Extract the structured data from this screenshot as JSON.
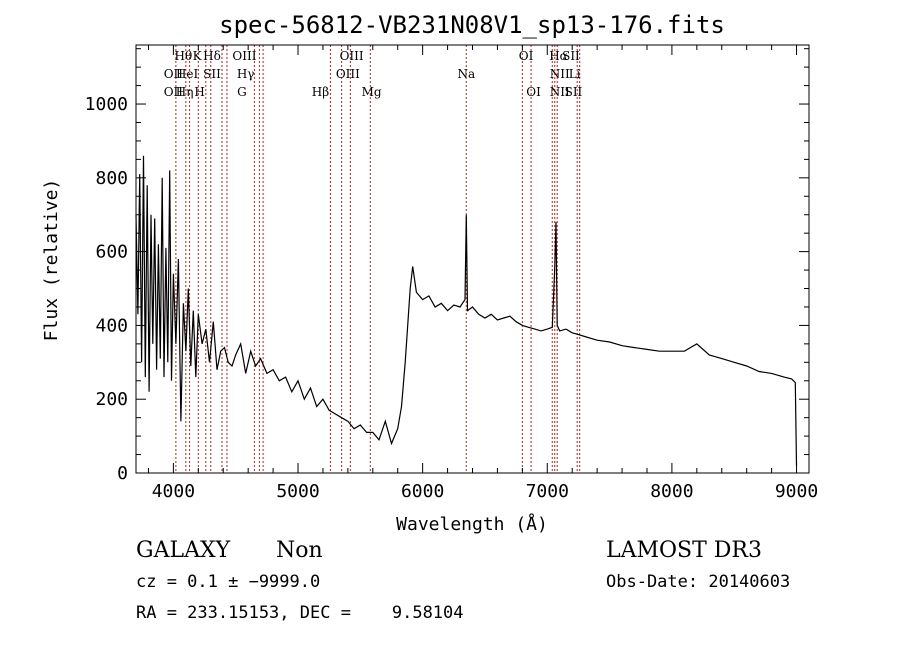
{
  "chart_data": {
    "type": "line",
    "title": "spec-56812-VB231N08V1_sp13-176.fits",
    "xlabel": "Wavelength (Å)",
    "ylabel": "Flux (relative)",
    "xlim": [
      3700,
      9100
    ],
    "ylim": [
      0,
      1160
    ],
    "xticks": [
      4000,
      5000,
      6000,
      7000,
      8000,
      9000
    ],
    "yticks": [
      0,
      200,
      400,
      600,
      800,
      1000
    ],
    "grid": false,
    "series": [
      {
        "name": "flux",
        "x": [
          3700,
          3715,
          3730,
          3745,
          3760,
          3775,
          3790,
          3805,
          3820,
          3835,
          3850,
          3865,
          3880,
          3895,
          3910,
          3925,
          3940,
          3955,
          3970,
          3985,
          4000,
          4020,
          4040,
          4060,
          4080,
          4100,
          4120,
          4140,
          4160,
          4180,
          4200,
          4230,
          4260,
          4290,
          4320,
          4350,
          4380,
          4410,
          4440,
          4470,
          4500,
          4540,
          4580,
          4620,
          4660,
          4700,
          4750,
          4800,
          4850,
          4900,
          4950,
          5000,
          5050,
          5100,
          5150,
          5200,
          5250,
          5300,
          5350,
          5400,
          5450,
          5500,
          5550,
          5600,
          5650,
          5700,
          5750,
          5800,
          5830,
          5860,
          5880,
          5900,
          5920,
          5950,
          6000,
          6050,
          6100,
          6150,
          6200,
          6250,
          6300,
          6340,
          6350,
          6360,
          6400,
          6450,
          6500,
          6550,
          6600,
          6650,
          6700,
          6750,
          6800,
          6850,
          6900,
          6950,
          7000,
          7040,
          7060,
          7070,
          7080,
          7100,
          7150,
          7200,
          7250,
          7300,
          7400,
          7500,
          7600,
          7700,
          7800,
          7900,
          8000,
          8100,
          8200,
          8300,
          8400,
          8500,
          8600,
          8700,
          8800,
          8900,
          8960,
          8990,
          9000
        ],
        "values": [
          700,
          430,
          810,
          300,
          860,
          260,
          780,
          220,
          700,
          350,
          690,
          280,
          620,
          310,
          800,
          260,
          610,
          300,
          820,
          250,
          540,
          350,
          580,
          140,
          460,
          330,
          500,
          290,
          440,
          260,
          430,
          350,
          390,
          300,
          410,
          280,
          330,
          340,
          300,
          290,
          320,
          350,
          270,
          330,
          290,
          310,
          270,
          280,
          250,
          260,
          220,
          250,
          200,
          230,
          180,
          200,
          170,
          160,
          150,
          140,
          120,
          130,
          110,
          110,
          90,
          140,
          80,
          120,
          180,
          300,
          400,
          500,
          560,
          490,
          470,
          480,
          450,
          460,
          440,
          455,
          450,
          470,
          700,
          440,
          450,
          430,
          420,
          430,
          415,
          420,
          425,
          410,
          400,
          395,
          390,
          385,
          390,
          395,
          560,
          680,
          400,
          385,
          390,
          380,
          375,
          370,
          360,
          355,
          345,
          340,
          335,
          330,
          330,
          330,
          350,
          320,
          310,
          300,
          290,
          275,
          270,
          260,
          255,
          245,
          20
        ],
        "color": "#000000"
      }
    ],
    "emission_lines": [
      {
        "label": "OII",
        "wavelength": 3727,
        "row": 1
      },
      {
        "label": "OII",
        "wavelength": 3729,
        "row": 2
      },
      {
        "label": "Hθ",
        "wavelength": 3798,
        "row": 0
      },
      {
        "label": "Hη",
        "wavelength": 3836,
        "row": 2
      },
      {
        "label": "HeI",
        "wavelength": 3889,
        "row": 1
      },
      {
        "label": "K",
        "wavelength": 3934,
        "row": 0
      },
      {
        "label": "H",
        "wavelength": 3969,
        "row": 2
      },
      {
        "label": "Hδ",
        "wavelength": 4102,
        "row": 0
      },
      {
        "label": "SII",
        "wavelength": 4072,
        "row": 1
      },
      {
        "label": "OIII",
        "wavelength": 4363,
        "row": 0
      },
      {
        "label": "Hγ",
        "wavelength": 4341,
        "row": 1
      },
      {
        "label": "G",
        "wavelength": 4304,
        "row": 2
      },
      {
        "label": "Hβ",
        "wavelength": 4861,
        "row": 2
      },
      {
        "label": "OIII",
        "wavelength": 5007,
        "row": 0
      },
      {
        "label": "OIII",
        "wavelength": 4959,
        "row": 1
      },
      {
        "label": "Mg",
        "wavelength": 5175,
        "row": 2
      },
      {
        "label": "Na",
        "wavelength": 5893,
        "row": 1
      },
      {
        "label": "OI",
        "wavelength": 6300,
        "row": 0
      },
      {
        "label": "OI",
        "wavelength": 6364,
        "row": 2
      },
      {
        "label": "Hα",
        "wavelength": 6563,
        "row": 0
      },
      {
        "label": "SII",
        "wavelength": 6717,
        "row": 0
      },
      {
        "label": "NII",
        "wavelength": 6548,
        "row": 1
      },
      {
        "label": "NII",
        "wavelength": 6583,
        "row": 2
      },
      {
        "label": "Li",
        "wavelength": 6708,
        "row": 1
      },
      {
        "label": "SII",
        "wavelength": 6731,
        "row": 2
      }
    ],
    "emission_line_positions_on_axis": [
      4020,
      4100,
      4130,
      4200,
      4260,
      4300,
      4390,
      4430,
      4650,
      4690,
      4720,
      5260,
      5350,
      5420,
      5580,
      6350,
      6800,
      6870,
      7040,
      7060,
      7080,
      7240,
      7260
    ]
  },
  "info": {
    "class_text": "GALAXY",
    "subclass_text": "Non",
    "survey_text": "LAMOST DR3",
    "cz_text": "cz = 0.1 ± −9999.0",
    "obsdate_text": "Obs-Date: 20140603",
    "radec_text": "RA = 233.15153, DEC =    9.58104"
  }
}
